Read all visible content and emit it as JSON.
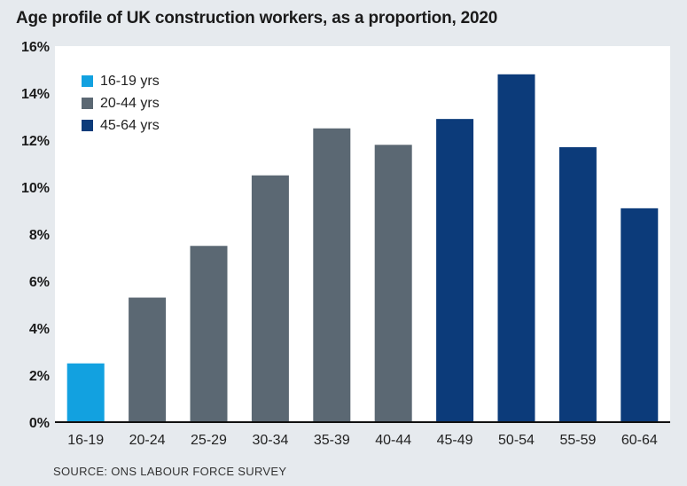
{
  "title": "Age profile of UK construction workers, as a proportion, 2020",
  "source": "SOURCE: ONS LABOUR FORCE SURVEY",
  "colors": {
    "background": "#e6eaee",
    "plot_bg": "#ffffff",
    "teen": "#12a1e0",
    "mid": "#5b6873",
    "senior": "#0c3b7a"
  },
  "legend": [
    {
      "label": "16-19 yrs",
      "color": "#12a1e0"
    },
    {
      "label": "20-44 yrs",
      "color": "#5b6873"
    },
    {
      "label": "45-64 yrs",
      "color": "#0c3b7a"
    }
  ],
  "chart_data": {
    "type": "bar",
    "title": "Age profile of UK construction workers, as a proportion, 2020",
    "xlabel": "",
    "ylabel": "",
    "ylim": [
      0,
      16
    ],
    "yticks": [
      "0%",
      "2%",
      "4%",
      "6%",
      "8%",
      "10%",
      "12%",
      "14%",
      "16%"
    ],
    "categories": [
      "16-19",
      "20-24",
      "25-29",
      "30-34",
      "35-39",
      "40-44",
      "45-49",
      "50-54",
      "55-59",
      "60-64"
    ],
    "values": [
      2.5,
      5.3,
      7.5,
      10.5,
      12.5,
      11.8,
      12.9,
      14.8,
      11.7,
      9.1
    ],
    "groups": [
      "16-19 yrs",
      "20-44 yrs",
      "20-44 yrs",
      "20-44 yrs",
      "20-44 yrs",
      "20-44 yrs",
      "45-64 yrs",
      "45-64 yrs",
      "45-64 yrs",
      "45-64 yrs"
    ],
    "grid": false,
    "legend_position": "top-left"
  }
}
